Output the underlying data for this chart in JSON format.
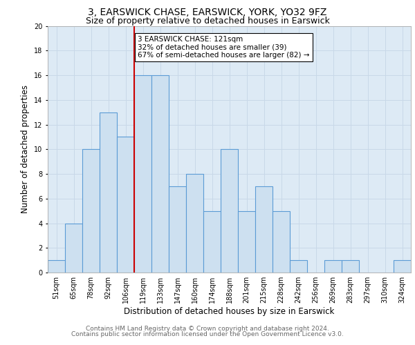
{
  "title_line1": "3, EARSWICK CHASE, EARSWICK, YORK, YO32 9FZ",
  "title_line2": "Size of property relative to detached houses in Earswick",
  "xlabel": "Distribution of detached houses by size in Earswick",
  "ylabel": "Number of detached properties",
  "footer_line1": "Contains HM Land Registry data © Crown copyright and database right 2024.",
  "footer_line2": "Contains public sector information licensed under the Open Government Licence v3.0.",
  "categories": [
    "51sqm",
    "65sqm",
    "78sqm",
    "92sqm",
    "106sqm",
    "119sqm",
    "133sqm",
    "147sqm",
    "160sqm",
    "174sqm",
    "188sqm",
    "201sqm",
    "215sqm",
    "228sqm",
    "242sqm",
    "256sqm",
    "269sqm",
    "283sqm",
    "297sqm",
    "310sqm",
    "324sqm"
  ],
  "values": [
    1,
    4,
    10,
    13,
    11,
    16,
    16,
    7,
    8,
    5,
    10,
    5,
    7,
    5,
    1,
    0,
    1,
    1,
    0,
    0,
    1
  ],
  "bar_color": "#cde0f0",
  "bar_edge_color": "#5b9bd5",
  "marker_line_color": "#cc0000",
  "marker_idx": 5,
  "annotation_text_line1": "3 EARSWICK CHASE: 121sqm",
  "annotation_text_line2": "32% of detached houses are smaller (39)",
  "annotation_text_line3": "67% of semi-detached houses are larger (82) →",
  "ylim": [
    0,
    20
  ],
  "yticks": [
    0,
    2,
    4,
    6,
    8,
    10,
    12,
    14,
    16,
    18,
    20
  ],
  "grid_color": "#c8d8e8",
  "bg_color": "#ddeaf5",
  "title1_fontsize": 10,
  "title2_fontsize": 9,
  "xlabel_fontsize": 8.5,
  "ylabel_fontsize": 8.5,
  "tick_fontsize": 7,
  "footer_fontsize": 6.5,
  "annot_fontsize": 7.5
}
